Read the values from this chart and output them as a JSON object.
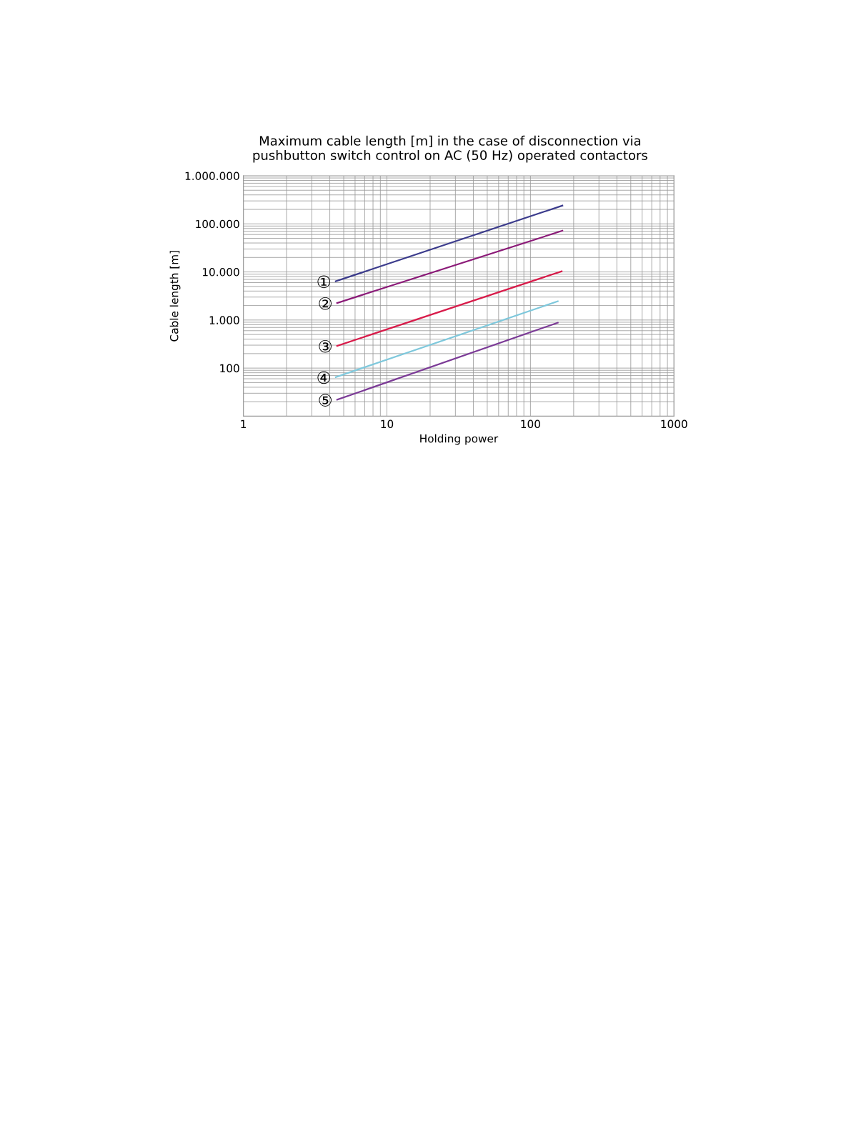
{
  "chart_data": {
    "type": "line",
    "title": "Maximum cable length [m] in the case of disconnection via\npushbutton switch control on AC (50 Hz) operated contactors",
    "xlabel": "Holding power",
    "ylabel": "Cable length [m]",
    "log": "xy",
    "grid": true,
    "legend": false,
    "marker": "none",
    "line_style": "solid",
    "xlim": [
      1,
      1000
    ],
    "xticks": [
      1,
      10,
      100,
      1000
    ],
    "ylim": [
      10,
      1000000
    ],
    "yticks": [
      {
        "value": 100,
        "label": "100"
      },
      {
        "value": 1000,
        "label": "1.000"
      },
      {
        "value": 10000,
        "label": "10.000"
      },
      {
        "value": 100000,
        "label": "100.000"
      },
      {
        "value": 1000000,
        "label": "1.000.000"
      }
    ],
    "series": [
      {
        "name": "①",
        "color": "#3b3b8c",
        "x": [
          4.4,
          167
        ],
        "values": [
          6400,
          240000
        ]
      },
      {
        "name": "②",
        "color": "#8b1a78",
        "x": [
          4.5,
          167
        ],
        "values": [
          2260,
          72000
        ]
      },
      {
        "name": "③",
        "color": "#d81b4a",
        "x": [
          4.5,
          165
        ],
        "values": [
          290,
          10300
        ]
      },
      {
        "name": "④",
        "color": "#7ec8dc",
        "x": [
          4.4,
          155
        ],
        "values": [
          65,
          2450
        ]
      },
      {
        "name": "⑤",
        "color": "#7b3a96",
        "x": [
          4.5,
          155
        ],
        "values": [
          22,
          880
        ]
      }
    ]
  }
}
